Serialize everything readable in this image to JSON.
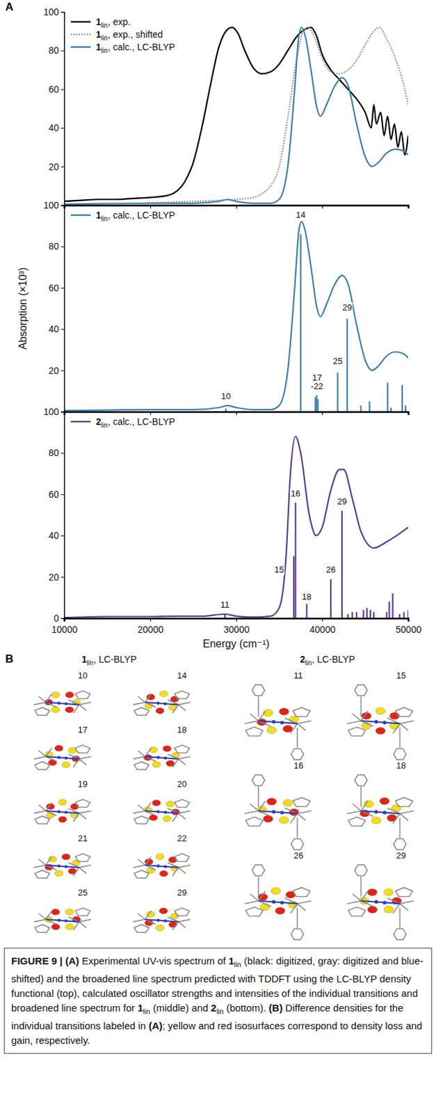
{
  "chart_data": [
    {
      "type": "line",
      "xlim": [
        10000,
        50000
      ],
      "xticks": [
        10000,
        20000,
        30000,
        40000,
        50000
      ],
      "ylim": [
        0,
        100
      ],
      "yticks": [
        20,
        40,
        60,
        80,
        100
      ],
      "tick_labels": "y",
      "legend": "top-left",
      "series": [
        {
          "name": "1lin, exp.",
          "color": "#000000",
          "x": [
            10000,
            12000,
            14000,
            16000,
            18000,
            20000,
            22000,
            23000,
            24000,
            25000,
            26000,
            27000,
            28000,
            28800,
            29500,
            30200,
            31000,
            32000,
            33000,
            34000,
            35000,
            36000,
            37000,
            38000,
            38700,
            39300,
            40000,
            41000,
            42000,
            43000,
            44000,
            45000,
            45700,
            46000,
            46300,
            46800,
            47200,
            47600,
            48000,
            48400,
            48800,
            49200,
            49600,
            50000
          ],
          "values": [
            2,
            2.5,
            3,
            3,
            3.5,
            4,
            5,
            7,
            12,
            22,
            40,
            62,
            82,
            90,
            92,
            89,
            80,
            71,
            68,
            69,
            73,
            80,
            87,
            91,
            92,
            88,
            78,
            70,
            65,
            60,
            55,
            48,
            40,
            52,
            42,
            48,
            36,
            46,
            34,
            42,
            30,
            38,
            26,
            36
          ]
        },
        {
          "name": "1lin, exp., shifted",
          "color": "#9a9a9a",
          "line_style": "dotted",
          "x": [
            19000,
            22000,
            25000,
            28000,
            30000,
            32000,
            33000,
            34000,
            35000,
            36000,
            37000,
            37800,
            38300,
            39000,
            40000,
            41000,
            42000,
            43000,
            44000,
            45000,
            46000,
            46600,
            47500,
            48500,
            49500,
            50000
          ],
          "values": [
            1,
            1.5,
            2,
            2.5,
            3,
            4,
            6,
            10,
            20,
            45,
            75,
            90,
            92,
            88,
            76,
            69,
            68,
            70,
            75,
            83,
            90,
            92,
            86,
            76,
            62,
            52
          ]
        },
        {
          "name": "1lin, calc., LC-BLYP",
          "color": "#3d7fa6",
          "x": [
            10000,
            20000,
            25000,
            28000,
            29000,
            30000,
            32000,
            34000,
            35000,
            36000,
            36800,
            37300,
            37600,
            38000,
            38700,
            39400,
            39800,
            40500,
            41500,
            42300,
            43000,
            44000,
            45000,
            45800,
            46500,
            47500,
            48500,
            49500,
            50000
          ],
          "values": [
            0.5,
            1,
            1,
            2,
            3,
            2,
            1,
            1,
            3,
            20,
            60,
            88,
            92,
            88,
            70,
            50,
            46,
            52,
            62,
            66,
            62,
            42,
            25,
            20,
            22,
            27,
            29,
            28,
            26
          ]
        }
      ]
    },
    {
      "type": "line",
      "y_label": "Absorption (×10³)",
      "xlim": [
        10000,
        50000
      ],
      "xticks": [
        10000,
        20000,
        30000,
        40000,
        50000
      ],
      "ylim": [
        0,
        100
      ],
      "yticks": [
        20,
        40,
        60,
        80,
        100
      ],
      "tick_labels": "y",
      "legend": "top-left",
      "series": [
        {
          "name": "1lin, calc., LC-BLYP",
          "color": "#3d7fa6",
          "x": [
            10000,
            20000,
            25000,
            28000,
            29000,
            30000,
            32000,
            34000,
            35000,
            36000,
            36800,
            37300,
            37600,
            38000,
            38700,
            39400,
            39800,
            40500,
            41500,
            42300,
            43000,
            44000,
            45000,
            45800,
            46500,
            47500,
            48500,
            49500,
            50000
          ],
          "values": [
            0.5,
            1,
            1,
            2,
            3,
            2,
            1,
            1,
            3,
            20,
            60,
            88,
            92,
            88,
            70,
            50,
            46,
            52,
            62,
            66,
            62,
            42,
            25,
            20,
            22,
            27,
            29,
            28,
            26
          ]
        },
        {
          "type": "stick",
          "color": "#3d7fa6",
          "x": [
            28800,
            37500,
            39200,
            39350,
            39500,
            41800,
            42900,
            44500,
            45500,
            47600,
            48000,
            49300,
            49700
          ],
          "values": [
            1.5,
            86,
            7,
            8,
            6,
            19,
            45,
            3,
            5,
            14,
            2,
            13,
            3
          ]
        }
      ],
      "annotations": [
        {
          "text": [
            "10"
          ],
          "x": 28800,
          "y": 6
        },
        {
          "text": [
            "14"
          ],
          "x": 37500,
          "y": 94
        },
        {
          "text": [
            "17",
            "-22"
          ],
          "x": 39400,
          "y": 11
        },
        {
          "text": [
            "25"
          ],
          "x": 41800,
          "y": 23
        },
        {
          "text": [
            "29"
          ],
          "x": 42900,
          "y": 49
        }
      ]
    },
    {
      "type": "line",
      "x_label": "Energy (cm⁻¹)",
      "xlim": [
        10000,
        50000
      ],
      "xticks": [
        10000,
        20000,
        30000,
        40000,
        50000
      ],
      "ylim": [
        0,
        100
      ],
      "yticks": [
        0,
        20,
        40,
        60,
        80,
        100
      ],
      "tick_labels": true,
      "legend": "top-left",
      "series": [
        {
          "name": "2lin, calc., LC-BLYP",
          "color": "#5a3c8c",
          "x": [
            10000,
            15000,
            20000,
            23000,
            26000,
            28700,
            30000,
            32000,
            34000,
            35000,
            35800,
            36300,
            36900,
            37500,
            38500,
            39300,
            40000,
            41000,
            42000,
            42500,
            43500,
            44500,
            46000,
            47500,
            49000,
            50000
          ],
          "values": [
            0.3,
            0.8,
            0.8,
            1,
            1,
            2,
            1,
            0.5,
            1,
            5,
            30,
            70,
            88,
            80,
            50,
            40,
            44,
            62,
            72,
            72,
            58,
            42,
            34,
            37,
            41,
            44
          ]
        },
        {
          "type": "stick",
          "color": "#5a3c8c",
          "x": [
            28700,
            36700,
            36900,
            38200,
            41000,
            42300,
            43000,
            43500,
            44000,
            44800,
            45200,
            45600,
            46000,
            47500,
            47800,
            48200,
            49000,
            49500,
            50000
          ],
          "values": [
            2,
            30,
            56,
            7,
            19,
            52,
            2,
            3,
            3,
            4,
            5,
            4,
            3,
            3,
            8,
            12,
            2,
            3,
            4
          ]
        }
      ],
      "annotations": [
        {
          "text": [
            "11"
          ],
          "x": 28700,
          "y": 5
        },
        {
          "text": [
            "15"
          ],
          "x": 35000,
          "y": 22
        },
        {
          "text": [
            "16"
          ],
          "x": 36900,
          "y": 59
        },
        {
          "text": [
            "18"
          ],
          "x": 38200,
          "y": 9
        },
        {
          "text": [
            "26"
          ],
          "x": 41000,
          "y": 22
        },
        {
          "text": [
            "29"
          ],
          "x": 42300,
          "y": 55
        }
      ]
    }
  ],
  "figure": {
    "panel_a_label": "A",
    "panel_b": {
      "label": "B",
      "groups": [
        {
          "title": "1lin, LC-BLYP",
          "items": [
            "10",
            "14",
            "17",
            "18",
            "19",
            "20",
            "21",
            "22",
            "25",
            "29"
          ]
        },
        {
          "title": "2lin, LC-BLYP",
          "items": [
            "11",
            "15",
            "16",
            "18",
            "26",
            "29"
          ]
        }
      ]
    },
    "caption": [
      {
        "text": "FIGURE 9 | ",
        "bold": true
      },
      {
        "text": "(A)",
        "bold": true
      },
      {
        "text": " Experimental UV-vis spectrum of 1lin (black: digitized, gray: digitized and blue-shifted) and the broadened line spectrum predicted with TDDFT using the LC-BLYP density functional (top), calculated oscillator strengths and intensities of the individual transitions and broadened line spectrum for 1lin (middle) and 2lin (bottom). ",
        "bold": false
      },
      {
        "text": "(B)",
        "bold": true
      },
      {
        "text": " Difference densities for the individual transitions labeled in ",
        "bold": false
      },
      {
        "text": "(A)",
        "bold": true
      },
      {
        "text": "; yellow and red isosurfaces correspond to density loss and gain, respectively.",
        "bold": false
      }
    ]
  }
}
